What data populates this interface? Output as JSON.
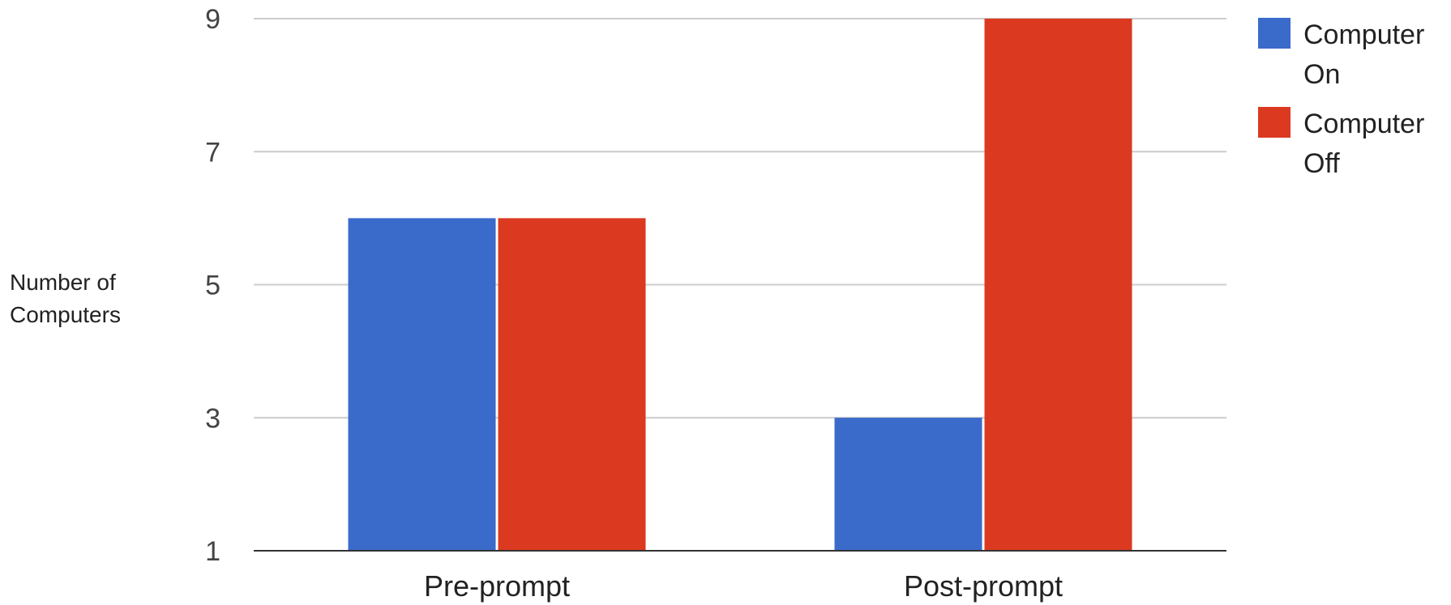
{
  "chart_data": {
    "type": "bar",
    "categories": [
      "Pre-prompt",
      "Post-prompt"
    ],
    "series": [
      {
        "name": "Computer On",
        "values": [
          6,
          3
        ],
        "color": "#3a6bcb"
      },
      {
        "name": "Computer Off",
        "values": [
          6,
          9
        ],
        "color": "#db3a21"
      }
    ],
    "ylabel": "Number of Computers",
    "ylabel_lines": [
      "Number of",
      "Computers"
    ],
    "ylim": [
      1,
      9
    ],
    "yticks": [
      1,
      3,
      5,
      7,
      9
    ],
    "grid": true,
    "legend": {
      "placement": "right",
      "entries": [
        {
          "lines": [
            "Computer",
            "On"
          ]
        },
        {
          "lines": [
            "Computer",
            "Off"
          ]
        }
      ]
    }
  }
}
